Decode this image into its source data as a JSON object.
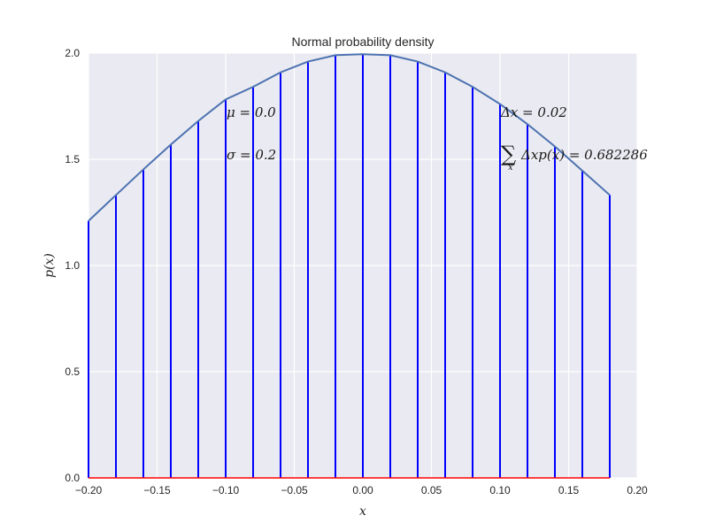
{
  "chart_data": {
    "type": "line",
    "title": "Normal probability density",
    "xlabel": "x",
    "ylabel": "p(x)",
    "xlim": [
      -0.2,
      0.2
    ],
    "ylim": [
      0.0,
      2.0
    ],
    "xticks": [
      "−0.20",
      "−0.15",
      "−0.10",
      "−0.05",
      "0.00",
      "0.05",
      "0.10",
      "0.15",
      "0.20"
    ],
    "xtick_values": [
      -0.2,
      -0.15,
      -0.1,
      -0.05,
      0.0,
      0.05,
      0.1,
      0.15,
      0.2
    ],
    "yticks": [
      "0.0",
      "0.5",
      "1.0",
      "1.5",
      "2.0"
    ],
    "ytick_values": [
      0.0,
      0.5,
      1.0,
      1.5,
      2.0
    ],
    "grid": true,
    "background": "#eaeaf2",
    "curve_color": "#4c72b0",
    "stem_color": "#0000ff",
    "baseline_color": "#ff0000",
    "mu": 0.0,
    "sigma": 0.2,
    "series": [
      {
        "x": [
          -0.2,
          -0.18,
          -0.16,
          -0.14,
          -0.12,
          -0.1,
          -0.08,
          -0.06,
          -0.04,
          -0.02,
          0.0,
          0.02,
          0.04,
          0.06,
          0.08,
          0.1,
          0.12,
          0.14,
          0.16,
          0.18
        ],
        "values": [
          1.2099,
          1.3315,
          1.4523,
          1.5694,
          1.6803,
          1.7821,
          1.8412,
          1.9094,
          1.9603,
          1.9901,
          1.9947,
          1.9901,
          1.9603,
          1.9094,
          1.8412,
          1.7603,
          1.6656,
          1.5603,
          1.4466,
          1.3315
        ]
      }
    ],
    "stems_x": [
      -0.2,
      -0.18,
      -0.16,
      -0.14,
      -0.12,
      -0.1,
      -0.08,
      -0.06,
      -0.04,
      -0.02,
      0.0,
      0.02,
      0.04,
      0.06,
      0.08,
      0.1,
      0.12,
      0.14,
      0.16,
      0.18
    ],
    "annotations": {
      "mu_text": "μ = 0.0",
      "sigma_text": "σ = 0.2",
      "dx_text": "Δx = 0.02",
      "sum_symbol": "∑",
      "sum_sub": "x",
      "sum_text": "Δxp(x) = 0.682286"
    }
  }
}
